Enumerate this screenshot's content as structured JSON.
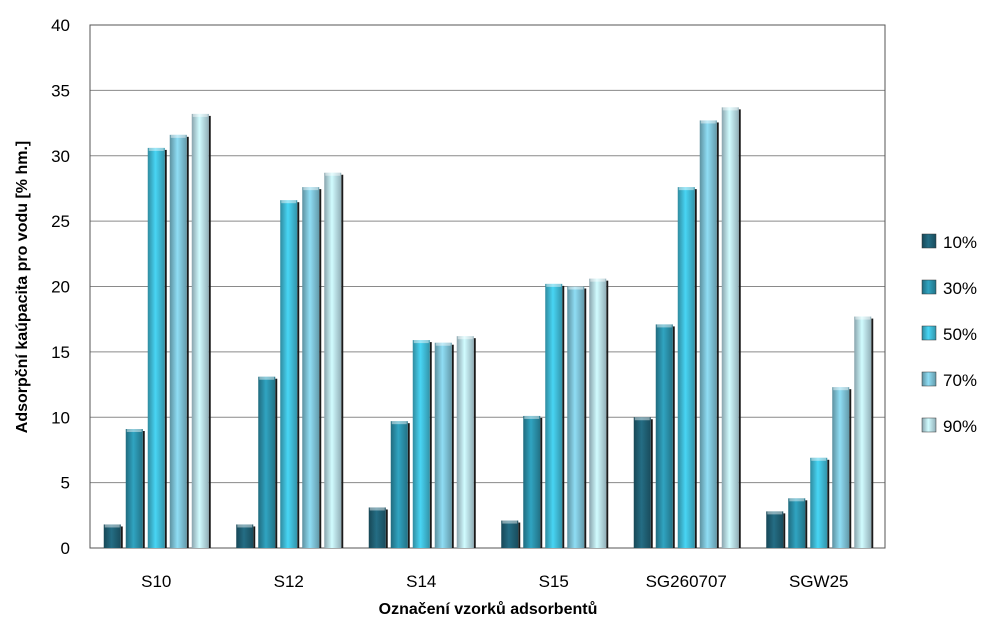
{
  "chart_data": {
    "type": "bar",
    "title": "",
    "xlabel": "Označení vzorků adsorbentů",
    "ylabel": "Adsorpční kaúpacita  pro vodu [% hm.]",
    "ylim": [
      0,
      40
    ],
    "yticks": [
      "0",
      "5",
      "10",
      "15",
      "20",
      "25",
      "30",
      "35",
      "40"
    ],
    "grid": true,
    "legend_position": "right",
    "categories": [
      "S10",
      "S12",
      "S14",
      "S15",
      "SG260707",
      "SGW25"
    ],
    "series": [
      {
        "name": "10%",
        "color": "#1f5f73",
        "values": [
          1.8,
          1.8,
          3.1,
          2.1,
          10.0,
          2.8
        ]
      },
      {
        "name": "30%",
        "color": "#2a8fa8",
        "values": [
          9.1,
          13.1,
          9.7,
          10.1,
          17.1,
          3.8
        ]
      },
      {
        "name": "50%",
        "color": "#3fb9d4",
        "values": [
          30.6,
          26.6,
          15.9,
          20.2,
          27.6,
          6.9
        ]
      },
      {
        "name": "70%",
        "color": "#7cc0d4",
        "values": [
          31.6,
          27.6,
          15.7,
          20.0,
          32.7,
          12.3
        ]
      },
      {
        "name": "90%",
        "color": "#b6dbe6",
        "values": [
          33.2,
          28.7,
          16.2,
          20.6,
          33.7,
          17.7
        ]
      }
    ]
  }
}
